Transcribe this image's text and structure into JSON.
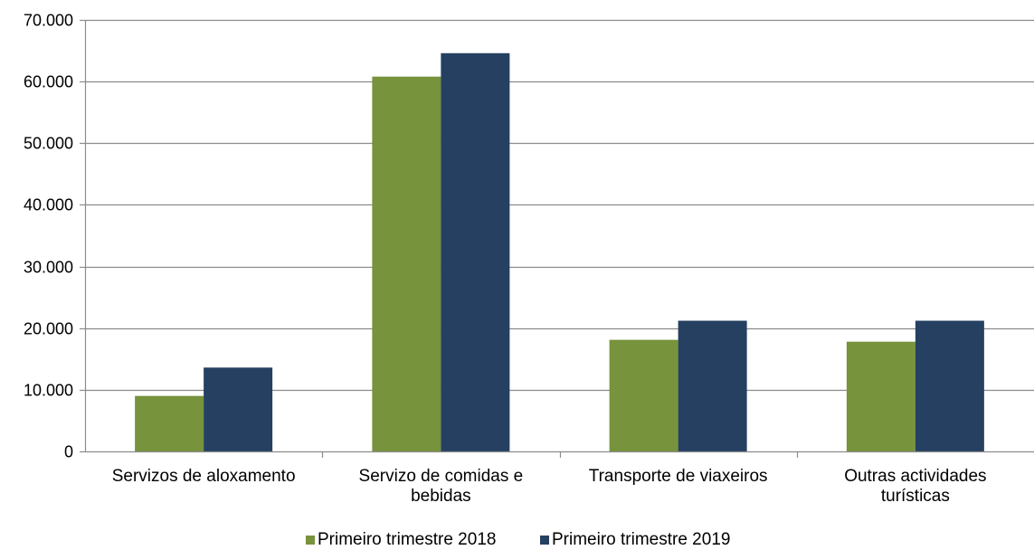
{
  "chart_data": {
    "type": "bar",
    "categories": [
      [
        "Servizos de aloxamento"
      ],
      [
        "Servizo de comidas e",
        "bebidas"
      ],
      [
        "Transporte de viaxeiros"
      ],
      [
        "Outras actividades",
        "turísticas"
      ]
    ],
    "series": [
      {
        "name": "Primeiro trimestre 2018",
        "color": "#77933c",
        "values": [
          9000,
          60800,
          18100,
          17800
        ]
      },
      {
        "name": "Primeiro trimestre 2019",
        "color": "#254061",
        "values": [
          13600,
          64600,
          21200,
          21200
        ]
      }
    ],
    "ylim": [
      0,
      70000
    ],
    "ytick_labels": [
      "0",
      "10.000",
      "20.000",
      "30.000",
      "40.000",
      "50.000",
      "60.000",
      "70.000"
    ],
    "grid": true,
    "gridline_color": "#8c8c8c",
    "legend_position": "bottom"
  }
}
